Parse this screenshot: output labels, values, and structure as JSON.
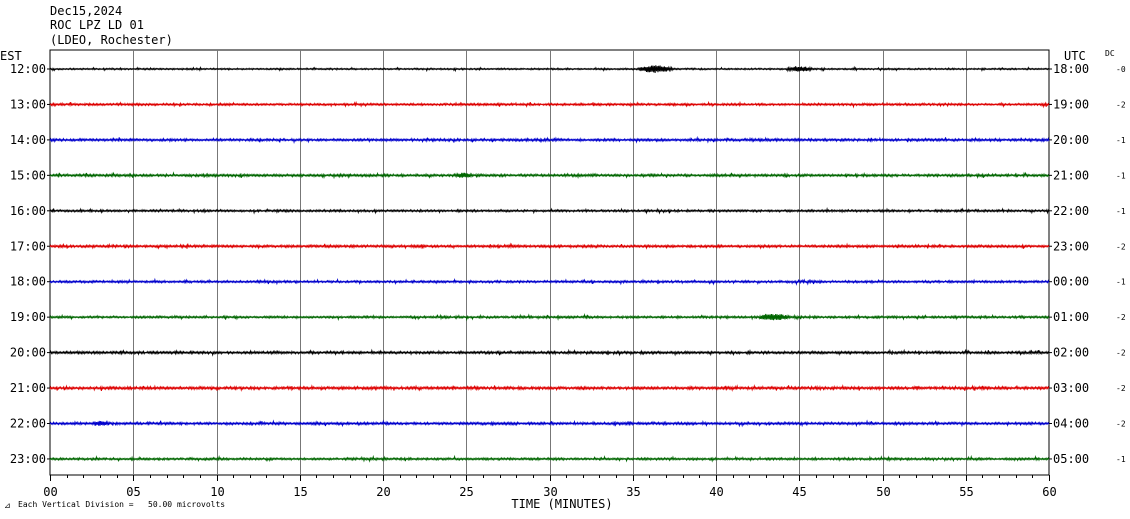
{
  "header": {
    "date": "Dec15,2024",
    "station": "ROC LPZ LD 01",
    "network": "(LDEO, Rochester)"
  },
  "chart_data": {
    "type": "line",
    "left_axis_title": "EST",
    "right_axis_title": "UTC",
    "dc_title": "DC",
    "xlabel": "TIME (MINUTES)",
    "xlim": [
      0,
      60
    ],
    "x_ticks": [
      0,
      5,
      10,
      15,
      20,
      25,
      30,
      35,
      40,
      45,
      50,
      55,
      60
    ],
    "x_tick_labels": [
      "00",
      "05",
      "10",
      "15",
      "20",
      "25",
      "30",
      "35",
      "40",
      "45",
      "50",
      "55",
      "60"
    ],
    "scale_note": "Each Vertical Division =   50.00 microvolts",
    "trace_colors": [
      "#000000",
      "#dd0000",
      "#0000cc",
      "#006600"
    ],
    "traces": [
      {
        "est": "12:00",
        "utc": "18:00",
        "dc": "-0",
        "color": "#000000",
        "noise": 0.6,
        "events": [
          {
            "start": 35.2,
            "end": 37.5,
            "amp": 3.2
          },
          {
            "start": 44.2,
            "end": 45.8,
            "amp": 2.2
          }
        ]
      },
      {
        "est": "13:00",
        "utc": "19:00",
        "dc": "-2",
        "color": "#dd0000",
        "noise": 0.8,
        "events": []
      },
      {
        "est": "14:00",
        "utc": "20:00",
        "dc": "-1",
        "color": "#0000cc",
        "noise": 0.9,
        "events": []
      },
      {
        "est": "15:00",
        "utc": "21:00",
        "dc": "-1",
        "color": "#006600",
        "noise": 0.9,
        "events": [
          {
            "start": 24.3,
            "end": 25.4,
            "amp": 1.8
          }
        ]
      },
      {
        "est": "16:00",
        "utc": "22:00",
        "dc": "-1",
        "color": "#000000",
        "noise": 0.8,
        "events": []
      },
      {
        "est": "17:00",
        "utc": "23:00",
        "dc": "-2",
        "color": "#dd0000",
        "noise": 0.9,
        "events": []
      },
      {
        "est": "18:00",
        "utc": "00:00",
        "dc": "-1",
        "color": "#0000cc",
        "noise": 0.8,
        "events": []
      },
      {
        "est": "19:00",
        "utc": "01:00",
        "dc": "-2",
        "color": "#006600",
        "noise": 0.8,
        "events": [
          {
            "start": 42.5,
            "end": 44.5,
            "amp": 2.6
          }
        ]
      },
      {
        "est": "20:00",
        "utc": "02:00",
        "dc": "-2",
        "color": "#000000",
        "noise": 0.9,
        "events": []
      },
      {
        "est": "21:00",
        "utc": "03:00",
        "dc": "-2",
        "color": "#dd0000",
        "noise": 1.0,
        "events": []
      },
      {
        "est": "22:00",
        "utc": "04:00",
        "dc": "-2",
        "color": "#0000cc",
        "noise": 0.9,
        "events": [
          {
            "start": 2.5,
            "end": 3.6,
            "amp": 1.6
          }
        ]
      },
      {
        "est": "23:00",
        "utc": "05:00",
        "dc": "-1",
        "color": "#006600",
        "noise": 0.8,
        "events": []
      }
    ]
  }
}
